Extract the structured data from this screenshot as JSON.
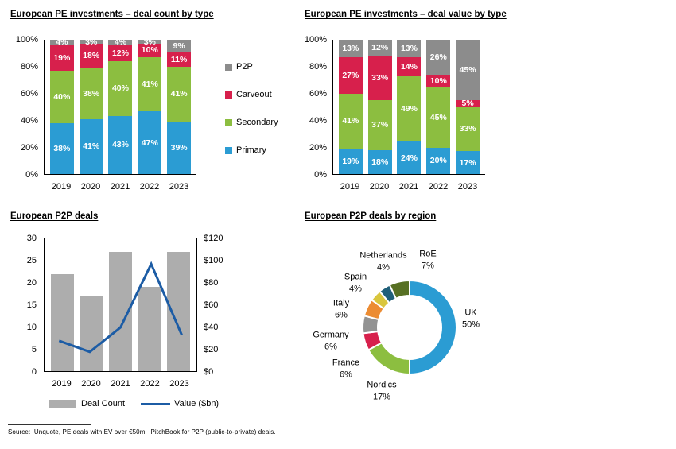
{
  "page": {
    "source_note": "Source:  Unquote, PE deals with EV over €50m.  PitchBook for P2P (public-to-private) deals."
  },
  "chart_data": [
    {
      "id": "deal_count_by_type",
      "type": "bar",
      "stacked": true,
      "units": "percent",
      "title": "European PE investments – deal count by type",
      "categories": [
        "2019",
        "2020",
        "2021",
        "2022",
        "2023"
      ],
      "series": [
        {
          "name": "Primary",
          "color": "#2B9CD3",
          "values": [
            38,
            41,
            43,
            47,
            39
          ]
        },
        {
          "name": "Secondary",
          "color": "#8CBE40",
          "values": [
            40,
            38,
            40,
            41,
            41
          ]
        },
        {
          "name": "Carveout",
          "color": "#D7204C",
          "values": [
            19,
            18,
            12,
            10,
            11
          ]
        },
        {
          "name": "P2P",
          "color": "#8C8C8C",
          "values": [
            4,
            3,
            4,
            3,
            9
          ]
        }
      ],
      "y_ticks": [
        "0%",
        "20%",
        "40%",
        "60%",
        "80%",
        "100%"
      ],
      "ylim": [
        0,
        100
      ],
      "grid": false,
      "legend_position": "right",
      "legend_order": [
        "P2P",
        "Carveout",
        "Secondary",
        "Primary"
      ]
    },
    {
      "id": "deal_value_by_type",
      "type": "bar",
      "stacked": true,
      "units": "percent",
      "title": "European PE investments – deal value by type",
      "categories": [
        "2019",
        "2020",
        "2021",
        "2022",
        "2023"
      ],
      "series": [
        {
          "name": "Primary",
          "color": "#2B9CD3",
          "values": [
            19,
            18,
            24,
            20,
            17
          ]
        },
        {
          "name": "Secondary",
          "color": "#8CBE40",
          "values": [
            41,
            37,
            49,
            45,
            33
          ]
        },
        {
          "name": "Carveout",
          "color": "#D7204C",
          "values": [
            27,
            33,
            14,
            10,
            5
          ]
        },
        {
          "name": "P2P",
          "color": "#8C8C8C",
          "values": [
            13,
            12,
            13,
            26,
            45
          ]
        }
      ],
      "y_ticks": [
        "0%",
        "20%",
        "40%",
        "60%",
        "80%",
        "100%"
      ],
      "ylim": [
        0,
        100
      ],
      "grid": false,
      "legend_position": "none"
    },
    {
      "id": "european_p2p_deals",
      "type": "combo",
      "title": "European P2P deals",
      "categories": [
        "2019",
        "2020",
        "2021",
        "2022",
        "2023"
      ],
      "bar_series": {
        "name": "Deal Count",
        "color": "#ADADAD",
        "axis": "left",
        "values": [
          22,
          17,
          27,
          19,
          27
        ]
      },
      "line_series": {
        "name": "Value ($bn)",
        "color": "#1C5CA5",
        "axis": "right",
        "values": [
          28,
          18,
          40,
          97,
          33
        ]
      },
      "left_axis": {
        "ticks": [
          "0",
          "5",
          "10",
          "15",
          "20",
          "25",
          "30"
        ],
        "min": 0,
        "max": 30
      },
      "right_axis": {
        "ticks": [
          "$0",
          "$20",
          "$40",
          "$60",
          "$80",
          "$100",
          "$120"
        ],
        "min": 0,
        "max": 120
      },
      "grid": false,
      "legend_position": "bottom"
    },
    {
      "id": "p2p_deals_by_region",
      "type": "pie",
      "donut": true,
      "title": "European P2P deals by region",
      "direction": "clockwise",
      "start_angle_deg": 0,
      "slices": [
        {
          "label": "UK",
          "value": 50,
          "pct_label": "50%",
          "color": "#2B9CD3"
        },
        {
          "label": "Nordics",
          "value": 17,
          "pct_label": "17%",
          "color": "#8CBE40"
        },
        {
          "label": "France",
          "value": 6,
          "pct_label": "6%",
          "color": "#D7204C"
        },
        {
          "label": "Germany",
          "value": 6,
          "pct_label": "6%",
          "color": "#939393"
        },
        {
          "label": "Italy",
          "value": 6,
          "pct_label": "6%",
          "color": "#EC8C33"
        },
        {
          "label": "Spain",
          "value": 4,
          "pct_label": "4%",
          "color": "#D9C63D"
        },
        {
          "label": "Netherlands",
          "value": 4,
          "pct_label": "4%",
          "color": "#20607A"
        },
        {
          "label": "RoE",
          "value": 7,
          "pct_label": "7%",
          "color": "#577023"
        }
      ]
    }
  ]
}
